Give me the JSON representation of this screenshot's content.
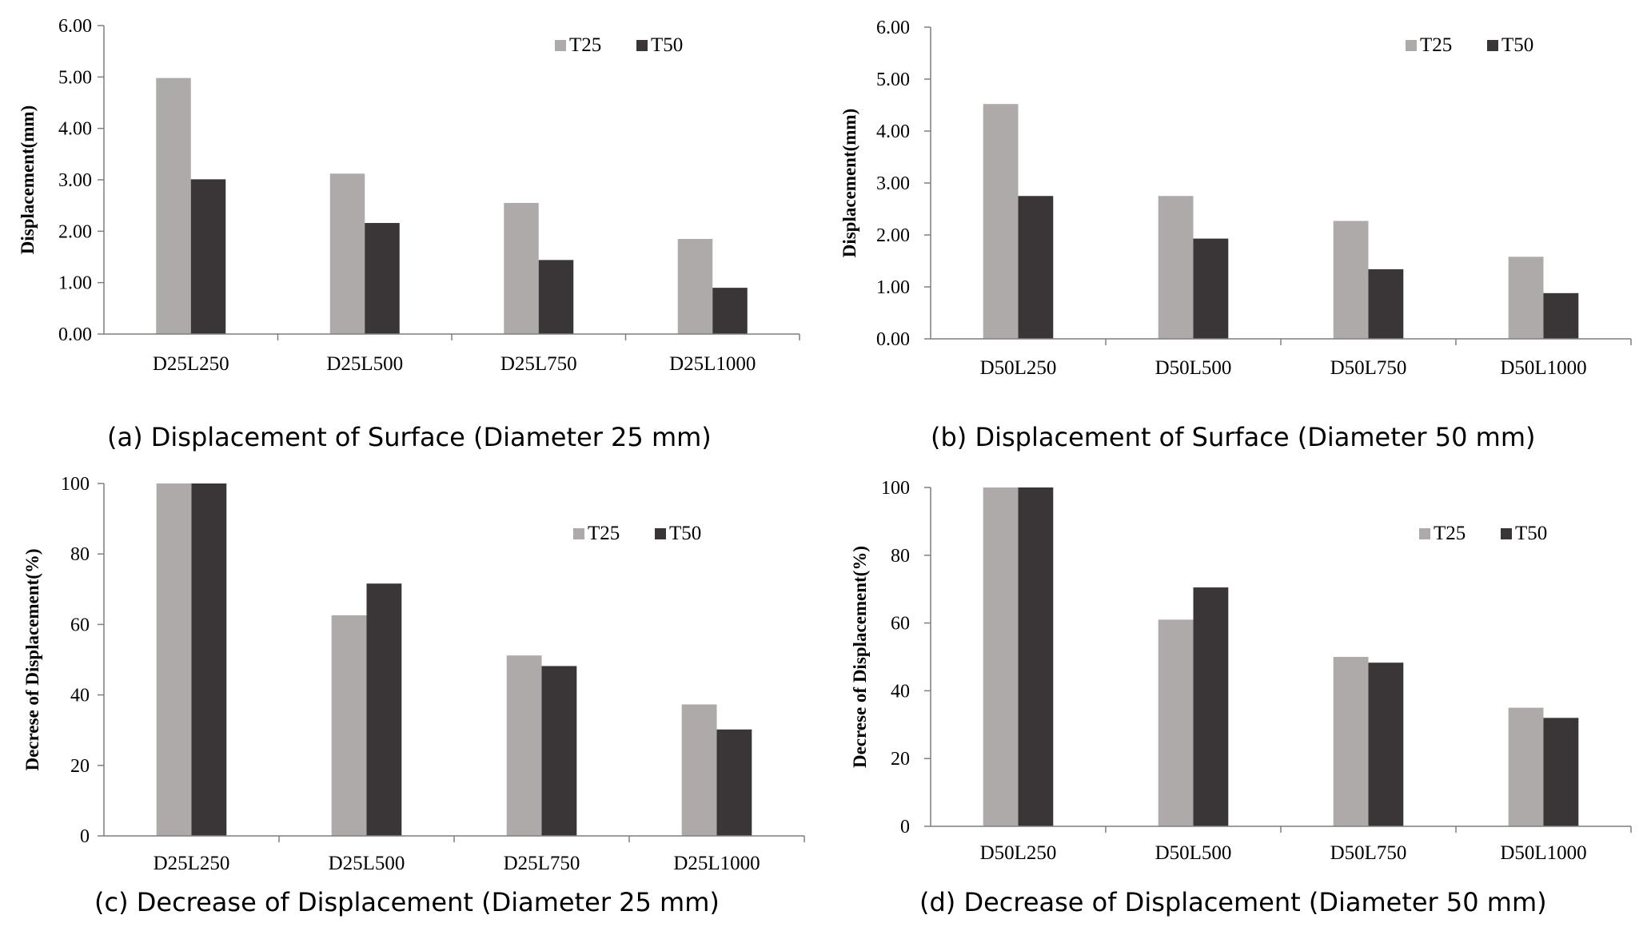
{
  "colors": {
    "T25": "#aeaaaa",
    "T50": "#3a3637"
  },
  "chart_data": [
    {
      "id": "a",
      "type": "bar",
      "caption": "(a) Displacement of Surface (Diameter 25 mm)",
      "ylabel": "Displacement(mm)",
      "xlabel": "",
      "ylim": [
        0,
        6
      ],
      "yticks": [
        "0.00",
        "1.00",
        "2.00",
        "3.00",
        "4.00",
        "5.00",
        "6.00"
      ],
      "categories": [
        "D25L250",
        "D25L500",
        "D25L750",
        "D25L1000"
      ],
      "legend": "top-right",
      "series": [
        {
          "name": "T25",
          "values": [
            4.98,
            3.12,
            2.55,
            1.85
          ]
        },
        {
          "name": "T50",
          "values": [
            3.01,
            2.16,
            1.44,
            0.9
          ]
        }
      ]
    },
    {
      "id": "b",
      "type": "bar",
      "caption": "(b) Displacement of Surface (Diameter 50 mm)",
      "ylabel": "Displacement(mm)",
      "xlabel": "",
      "ylim": [
        0,
        6
      ],
      "yticks": [
        "0.00",
        "1.00",
        "2.00",
        "3.00",
        "4.00",
        "5.00",
        "6.00"
      ],
      "categories": [
        "D50L250",
        "D50L500",
        "D50L750",
        "D50L1000"
      ],
      "legend": "top-right",
      "series": [
        {
          "name": "T25",
          "values": [
            4.52,
            2.75,
            2.27,
            1.58
          ]
        },
        {
          "name": "T50",
          "values": [
            2.75,
            1.93,
            1.34,
            0.88
          ]
        }
      ]
    },
    {
      "id": "c",
      "type": "bar",
      "caption": "(c) Decrease of Displacement (Diameter 25 mm)",
      "ylabel": "Decrese of Displacement(%)",
      "xlabel": "",
      "ylim": [
        0,
        100
      ],
      "yticks": [
        "0",
        "20",
        "40",
        "60",
        "80",
        "100"
      ],
      "categories": [
        "D25L250",
        "D25L500",
        "D25L750",
        "D25L1000"
      ],
      "legend": "top-right",
      "series": [
        {
          "name": "T25",
          "values": [
            100,
            62.6,
            51.2,
            37.3
          ]
        },
        {
          "name": "T50",
          "values": [
            100,
            71.6,
            48.2,
            30.2
          ]
        }
      ]
    },
    {
      "id": "d",
      "type": "bar",
      "caption": "(d) Decrease of Displacement (Diameter 50 mm)",
      "ylabel": "Decrese of Displacement(%)",
      "xlabel": "",
      "ylim": [
        0,
        100
      ],
      "yticks": [
        "0",
        "20",
        "40",
        "60",
        "80",
        "100"
      ],
      "categories": [
        "D50L250",
        "D50L500",
        "D50L750",
        "D50L1000"
      ],
      "legend": "top-right",
      "series": [
        {
          "name": "T25",
          "values": [
            100,
            61.0,
            50.0,
            35.0
          ]
        },
        {
          "name": "T50",
          "values": [
            100,
            70.5,
            48.3,
            32.0
          ]
        }
      ]
    }
  ]
}
